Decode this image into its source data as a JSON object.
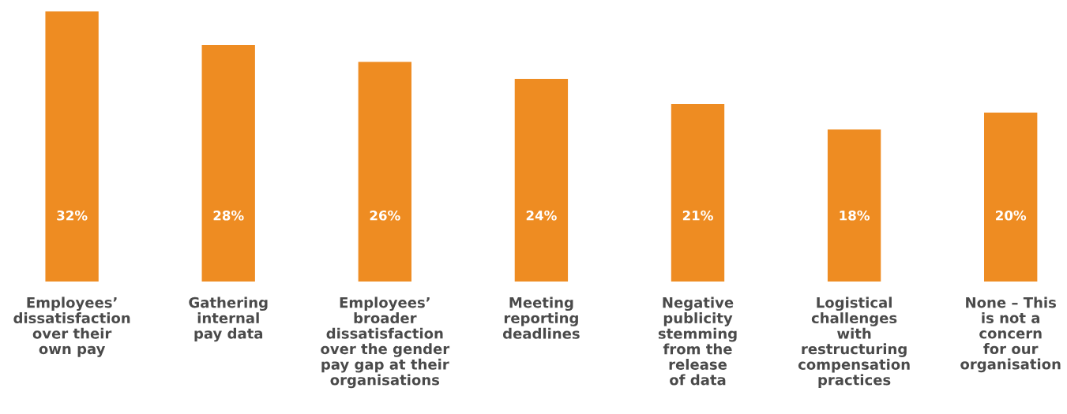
{
  "chart_data": {
    "type": "bar",
    "categories": [
      "Employees’\ndissatisfaction\nover their\nown pay",
      "Gathering\ninternal\npay data",
      "Employees’\nbroader\ndissatisfaction\nover the gender\npay gap at their\norganisations",
      "Meeting\nreporting\ndeadlines",
      "Negative\npublicity\nstemming\nfrom the\nrelease\nof data",
      "Logistical\nchallenges\nwith\nrestructuring\ncompensation\npractices",
      "None – This\nis not a\nconcern\nfor our\norganisation"
    ],
    "values": [
      32,
      28,
      26,
      24,
      21,
      18,
      20
    ],
    "value_labels": [
      "32%",
      "28%",
      "26%",
      "24%",
      "21%",
      "18%",
      "20%"
    ],
    "color": "#ee8c22"
  }
}
